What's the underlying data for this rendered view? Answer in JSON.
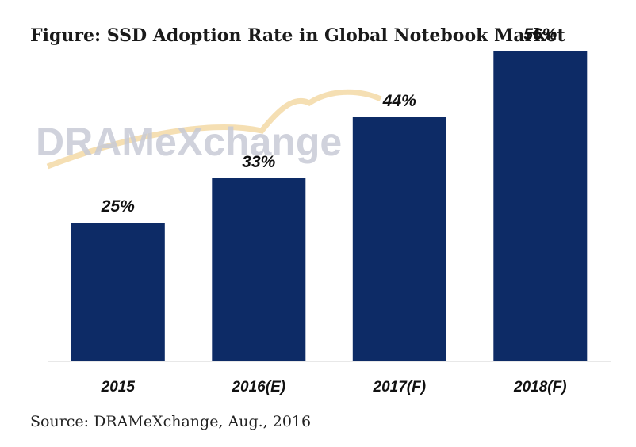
{
  "title": "Figure: SSD Adoption Rate in Global Notebook Market",
  "source": "Source: DRAMeXchange, Aug., 2016",
  "watermark": "DRAMeXchange",
  "colors": {
    "bar": "#0d2b66",
    "text": "#111111",
    "watermark": "#c8cbd6",
    "swoosh": "#f2d7a0"
  },
  "chart_data": {
    "type": "bar",
    "categories": [
      "2015",
      "2016(E)",
      "2017(F)",
      "2018(F)"
    ],
    "values": [
      25,
      33,
      44,
      56
    ],
    "data_labels": [
      "25%",
      "33%",
      "44%",
      "56%"
    ],
    "unit": "%",
    "ylim": [
      0,
      60
    ],
    "grid": false,
    "legend": "none"
  }
}
